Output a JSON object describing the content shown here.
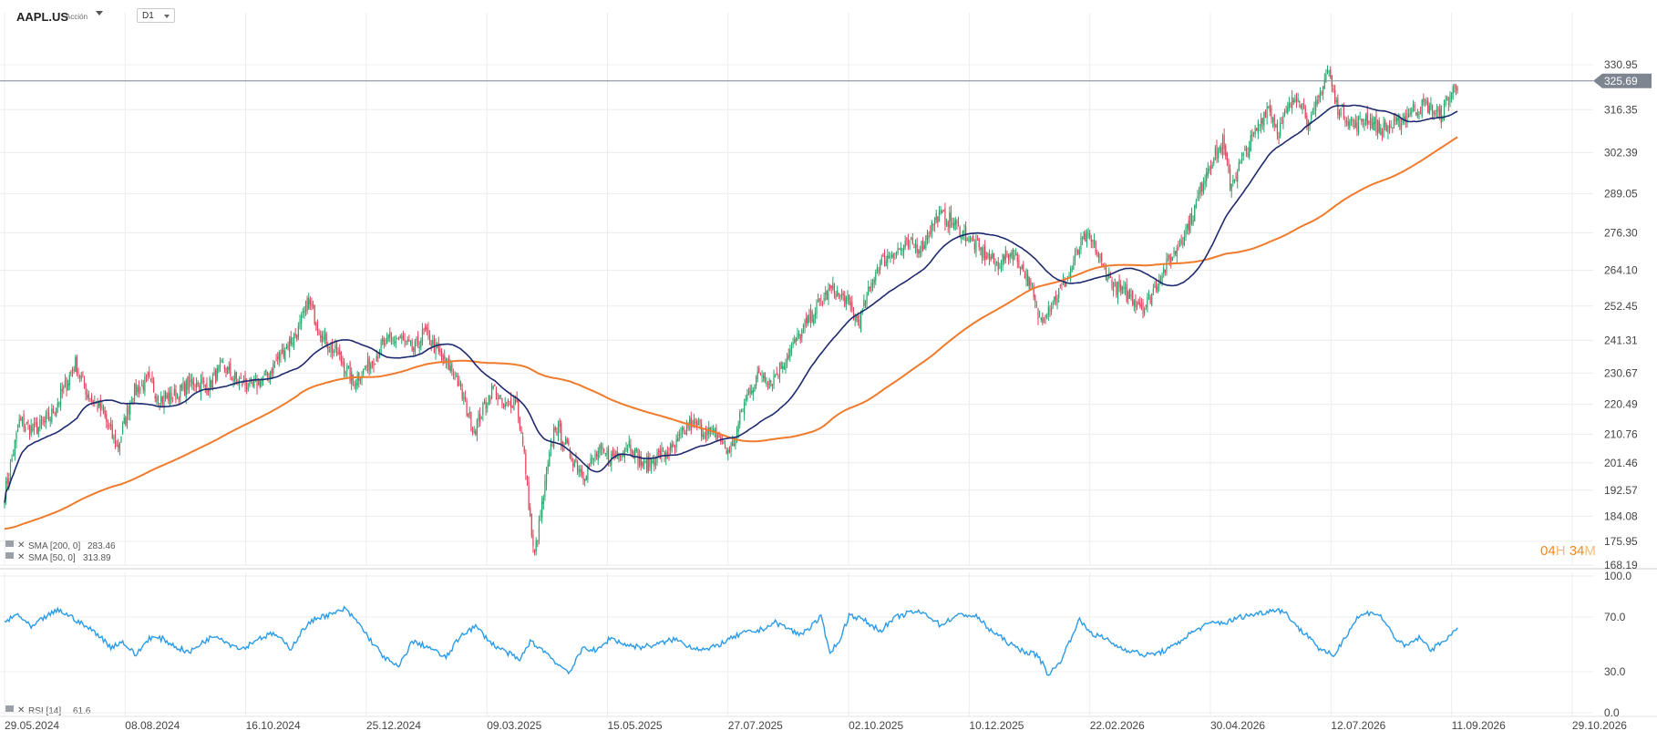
{
  "header": {
    "symbol": "AAPL.US",
    "symbol_type": "Acción",
    "timeframe": "D1"
  },
  "countdown": {
    "hours": "04",
    "h_unit": "H",
    "minutes": "34",
    "m_unit": "M"
  },
  "colors": {
    "up": "#26a66b",
    "down": "#e0425a",
    "sma200": "#f07b2c",
    "sma50": "#1e2a6e",
    "rsi": "#2b9be8",
    "price_line": "#7d8590",
    "grid": "#ececec"
  },
  "chart_data": [
    {
      "type": "candlestick",
      "title": "AAPL.US D1",
      "current_price": "325.69",
      "y_ticks": [
        "330.95",
        "316.35",
        "302.39",
        "289.05",
        "276.30",
        "264.10",
        "252.45",
        "241.31",
        "230.67",
        "220.49",
        "210.76",
        "201.46",
        "192.57",
        "184.08",
        "175.95",
        "168.19"
      ],
      "x_ticks": [
        "29.05.2024",
        "08.08.2024",
        "16.10.2024",
        "25.12.2024",
        "09.03.2025",
        "15.05.2025",
        "27.07.2025",
        "02.10.2025",
        "10.12.2025",
        "22.02.2026",
        "30.04.2026",
        "12.07.2026",
        "11.09.2026",
        "29.10.2026"
      ],
      "ylim": [
        168.19,
        336
      ],
      "close_anchors": [
        [
          0,
          191
        ],
        [
          10,
          215
        ],
        [
          20,
          212
        ],
        [
          30,
          216
        ],
        [
          40,
          226
        ],
        [
          47,
          234
        ],
        [
          55,
          224
        ],
        [
          65,
          218
        ],
        [
          75,
          206
        ],
        [
          85,
          224
        ],
        [
          95,
          228
        ],
        [
          105,
          222
        ],
        [
          115,
          224
        ],
        [
          125,
          228
        ],
        [
          135,
          226
        ],
        [
          145,
          233
        ],
        [
          155,
          228
        ],
        [
          165,
          226
        ],
        [
          175,
          230
        ],
        [
          185,
          238
        ],
        [
          195,
          244
        ],
        [
          202,
          254
        ],
        [
          212,
          242
        ],
        [
          222,
          236
        ],
        [
          232,
          228
        ],
        [
          242,
          233
        ],
        [
          252,
          240
        ],
        [
          262,
          242
        ],
        [
          272,
          238
        ],
        [
          279,
          244
        ],
        [
          290,
          236
        ],
        [
          300,
          230
        ],
        [
          305,
          222
        ],
        [
          312,
          212
        ],
        [
          325,
          226
        ],
        [
          332,
          219
        ],
        [
          340,
          223
        ],
        [
          346,
          202
        ],
        [
          352,
          170
        ],
        [
          360,
          196
        ],
        [
          366,
          214
        ],
        [
          375,
          205
        ],
        [
          385,
          198
        ],
        [
          395,
          205
        ],
        [
          405,
          203
        ],
        [
          415,
          208
        ],
        [
          425,
          200
        ],
        [
          435,
          204
        ],
        [
          445,
          206
        ],
        [
          455,
          214
        ],
        [
          465,
          212
        ],
        [
          475,
          210
        ],
        [
          480,
          205
        ],
        [
          485,
          208
        ],
        [
          490,
          218
        ],
        [
          495,
          225
        ],
        [
          503,
          231
        ],
        [
          510,
          228
        ],
        [
          520,
          236
        ],
        [
          530,
          244
        ],
        [
          540,
          252
        ],
        [
          550,
          258
        ],
        [
          560,
          254
        ],
        [
          568,
          247
        ],
        [
          580,
          265
        ],
        [
          590,
          270
        ],
        [
          600,
          272
        ],
        [
          610,
          272
        ],
        [
          620,
          282
        ],
        [
          630,
          280
        ],
        [
          640,
          275
        ],
        [
          650,
          270
        ],
        [
          660,
          266
        ],
        [
          670,
          270
        ],
        [
          680,
          262
        ],
        [
          688,
          248
        ],
        [
          697,
          254
        ],
        [
          707,
          262
        ],
        [
          718,
          275
        ],
        [
          725,
          272
        ],
        [
          730,
          265
        ],
        [
          740,
          258
        ],
        [
          750,
          255
        ],
        [
          758,
          252
        ],
        [
          768,
          262
        ],
        [
          778,
          270
        ],
        [
          790,
          282
        ],
        [
          800,
          298
        ],
        [
          810,
          305
        ],
        [
          815,
          292
        ],
        [
          825,
          302
        ],
        [
          840,
          318
        ],
        [
          847,
          309
        ],
        [
          852,
          315
        ],
        [
          860,
          322
        ],
        [
          868,
          311
        ],
        [
          875,
          322
        ],
        [
          880,
          330
        ],
        [
          885,
          318
        ],
        [
          898,
          311
        ],
        [
          905,
          314
        ],
        [
          915,
          310
        ],
        [
          925,
          311
        ],
        [
          935,
          316
        ],
        [
          945,
          318
        ],
        [
          955,
          314
        ],
        [
          962,
          322
        ],
        [
          967,
          325
        ]
      ],
      "series": [
        {
          "name": "SMA [200, 0]",
          "value": "283.46"
        },
        {
          "name": "SMA [50, 0]",
          "value": "313.89"
        }
      ]
    },
    {
      "type": "line",
      "title": "RSI [14]",
      "value": "61.6",
      "y_ticks": [
        "100.0",
        "70.0",
        "30.0",
        "0.0"
      ],
      "ylim": [
        0,
        100
      ],
      "anchors": [
        [
          0,
          66
        ],
        [
          8,
          72
        ],
        [
          16,
          62
        ],
        [
          24,
          70
        ],
        [
          32,
          75
        ],
        [
          40,
          70
        ],
        [
          47,
          64
        ],
        [
          55,
          58
        ],
        [
          63,
          48
        ],
        [
          70,
          52
        ],
        [
          78,
          42
        ],
        [
          86,
          55
        ],
        [
          94,
          54
        ],
        [
          102,
          48
        ],
        [
          110,
          44
        ],
        [
          118,
          52
        ],
        [
          126,
          57
        ],
        [
          134,
          50
        ],
        [
          142,
          47
        ],
        [
          150,
          54
        ],
        [
          160,
          58
        ],
        [
          170,
          47
        ],
        [
          178,
          62
        ],
        [
          186,
          70
        ],
        [
          195,
          72
        ],
        [
          202,
          76
        ],
        [
          210,
          66
        ],
        [
          218,
          52
        ],
        [
          226,
          40
        ],
        [
          234,
          33
        ],
        [
          242,
          52
        ],
        [
          252,
          48
        ],
        [
          262,
          40
        ],
        [
          272,
          58
        ],
        [
          280,
          63
        ],
        [
          290,
          50
        ],
        [
          300,
          43
        ],
        [
          306,
          38
        ],
        [
          312,
          52
        ],
        [
          320,
          46
        ],
        [
          330,
          34
        ],
        [
          336,
          30
        ],
        [
          344,
          48
        ],
        [
          352,
          45
        ],
        [
          360,
          55
        ],
        [
          368,
          50
        ],
        [
          378,
          48
        ],
        [
          388,
          50
        ],
        [
          398,
          54
        ],
        [
          408,
          48
        ],
        [
          418,
          46
        ],
        [
          428,
          52
        ],
        [
          438,
          58
        ],
        [
          448,
          60
        ],
        [
          458,
          66
        ],
        [
          465,
          62
        ],
        [
          472,
          57
        ],
        [
          478,
          62
        ],
        [
          485,
          70
        ],
        [
          490,
          45
        ],
        [
          495,
          50
        ],
        [
          502,
          72
        ],
        [
          510,
          68
        ],
        [
          520,
          60
        ],
        [
          530,
          70
        ],
        [
          540,
          74
        ],
        [
          548,
          72
        ],
        [
          556,
          64
        ],
        [
          564,
          70
        ],
        [
          570,
          72
        ],
        [
          578,
          70
        ],
        [
          584,
          62
        ],
        [
          592,
          55
        ],
        [
          600,
          48
        ],
        [
          608,
          44
        ],
        [
          614,
          42
        ],
        [
          620,
          28
        ],
        [
          626,
          35
        ],
        [
          632,
          50
        ],
        [
          638,
          68
        ],
        [
          646,
          58
        ],
        [
          654,
          54
        ],
        [
          662,
          48
        ],
        [
          670,
          45
        ],
        [
          678,
          42
        ],
        [
          686,
          44
        ],
        [
          694,
          48
        ],
        [
          702,
          56
        ],
        [
          710,
          62
        ],
        [
          718,
          66
        ],
        [
          726,
          66
        ],
        [
          734,
          70
        ],
        [
          742,
          72
        ],
        [
          750,
          74
        ],
        [
          756,
          76
        ],
        [
          762,
          72
        ],
        [
          770,
          60
        ],
        [
          776,
          55
        ],
        [
          782,
          45
        ],
        [
          790,
          42
        ],
        [
          796,
          55
        ],
        [
          804,
          70
        ],
        [
          812,
          74
        ],
        [
          818,
          70
        ],
        [
          826,
          55
        ],
        [
          832,
          48
        ],
        [
          840,
          55
        ],
        [
          848,
          46
        ],
        [
          856,
          54
        ],
        [
          864,
          61
        ]
      ]
    }
  ]
}
